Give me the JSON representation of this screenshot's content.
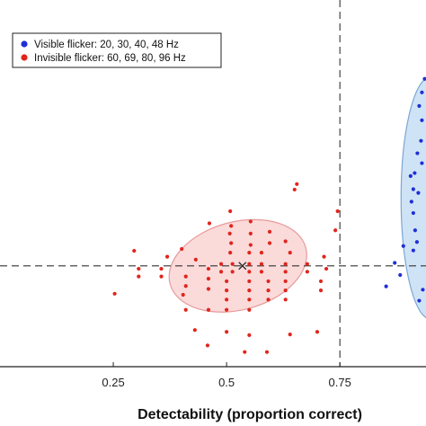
{
  "chart_data": {
    "type": "scatter",
    "title": "",
    "xlabel": "Detectability (proportion correct)",
    "ylabel": "",
    "xlim": [
      0.0,
      0.94
    ],
    "ylim": [
      0.0,
      1.0
    ],
    "xticks": [
      0.25,
      0.5,
      0.75
    ],
    "xtick_labels": [
      "0.25",
      "0.5",
      "0.75"
    ],
    "grid": false,
    "legend_position": "top-left",
    "reference_lines": {
      "x": 0.75,
      "y": 0.275
    },
    "marker_x": {
      "x": 0.535,
      "y": 0.275
    },
    "series": [
      {
        "name": "Visible flicker: 20, 30, 40, 48 Hz",
        "color": "#1f2fd8",
        "ellipse": {
          "cx": 0.95,
          "cy": 0.46,
          "rx": 0.065,
          "ry": 0.33,
          "fill": "#cfe3f6",
          "stroke": "#7aa7d6"
        },
        "points": [
          [
            0.937,
            0.785
          ],
          [
            0.931,
            0.748
          ],
          [
            0.925,
            0.711
          ],
          [
            0.931,
            0.672
          ],
          [
            0.929,
            0.616
          ],
          [
            0.921,
            0.582
          ],
          [
            0.915,
            0.528
          ],
          [
            0.906,
            0.52
          ],
          [
            0.912,
            0.484
          ],
          [
            0.923,
            0.474
          ],
          [
            0.908,
            0.45
          ],
          [
            0.912,
            0.419
          ],
          [
            0.916,
            0.372
          ],
          [
            0.92,
            0.34
          ],
          [
            0.912,
            0.317
          ],
          [
            0.89,
            0.329
          ],
          [
            0.871,
            0.283
          ],
          [
            0.883,
            0.25
          ],
          [
            0.852,
            0.219
          ],
          [
            0.925,
            0.18
          ],
          [
            0.933,
            0.21
          ],
          [
            0.931,
            0.555
          ]
        ]
      },
      {
        "name": "Invisible flicker: 60, 69, 80, 96 Hz",
        "color": "#e0251c",
        "ellipse": {
          "cx": 0.525,
          "cy": 0.275,
          "rx": 0.155,
          "ry": 0.12,
          "rotation": -15,
          "fill": "#fbdada",
          "stroke": "#e89a9a"
        },
        "points": [
          [
            0.655,
            0.498
          ],
          [
            0.65,
            0.483
          ],
          [
            0.553,
            0.396
          ],
          [
            0.51,
            0.384
          ],
          [
            0.462,
            0.391
          ],
          [
            0.507,
            0.363
          ],
          [
            0.553,
            0.363
          ],
          [
            0.595,
            0.368
          ],
          [
            0.51,
            0.337
          ],
          [
            0.553,
            0.332
          ],
          [
            0.595,
            0.337
          ],
          [
            0.63,
            0.342
          ],
          [
            0.401,
            0.321
          ],
          [
            0.508,
            0.311
          ],
          [
            0.55,
            0.311
          ],
          [
            0.577,
            0.311
          ],
          [
            0.64,
            0.311
          ],
          [
            0.296,
            0.316
          ],
          [
            0.369,
            0.3
          ],
          [
            0.432,
            0.292
          ],
          [
            0.488,
            0.28
          ],
          [
            0.513,
            0.28
          ],
          [
            0.55,
            0.28
          ],
          [
            0.577,
            0.28
          ],
          [
            0.63,
            0.28
          ],
          [
            0.678,
            0.28
          ],
          [
            0.715,
            0.3
          ],
          [
            0.306,
            0.267
          ],
          [
            0.356,
            0.267
          ],
          [
            0.46,
            0.267
          ],
          [
            0.488,
            0.259
          ],
          [
            0.513,
            0.259
          ],
          [
            0.55,
            0.259
          ],
          [
            0.577,
            0.259
          ],
          [
            0.63,
            0.259
          ],
          [
            0.678,
            0.259
          ],
          [
            0.72,
            0.267
          ],
          [
            0.306,
            0.246
          ],
          [
            0.356,
            0.246
          ],
          [
            0.41,
            0.246
          ],
          [
            0.46,
            0.24
          ],
          [
            0.5,
            0.233
          ],
          [
            0.55,
            0.233
          ],
          [
            0.592,
            0.233
          ],
          [
            0.63,
            0.233
          ],
          [
            0.708,
            0.233
          ],
          [
            0.41,
            0.22
          ],
          [
            0.46,
            0.212
          ],
          [
            0.5,
            0.208
          ],
          [
            0.55,
            0.208
          ],
          [
            0.592,
            0.208
          ],
          [
            0.63,
            0.208
          ],
          [
            0.708,
            0.208
          ],
          [
            0.253,
            0.199
          ],
          [
            0.404,
            0.196
          ],
          [
            0.5,
            0.183
          ],
          [
            0.55,
            0.183
          ],
          [
            0.592,
            0.183
          ],
          [
            0.63,
            0.183
          ],
          [
            0.5,
            0.155
          ],
          [
            0.55,
            0.155
          ],
          [
            0.41,
            0.155
          ],
          [
            0.46,
            0.155
          ],
          [
            0.43,
            0.1
          ],
          [
            0.5,
            0.095
          ],
          [
            0.55,
            0.086
          ],
          [
            0.64,
            0.088
          ],
          [
            0.7,
            0.095
          ],
          [
            0.458,
            0.058
          ],
          [
            0.54,
            0.04
          ],
          [
            0.589,
            0.04
          ],
          [
            0.745,
            0.424
          ],
          [
            0.508,
            0.424
          ],
          [
            0.74,
            0.372
          ]
        ]
      }
    ]
  }
}
